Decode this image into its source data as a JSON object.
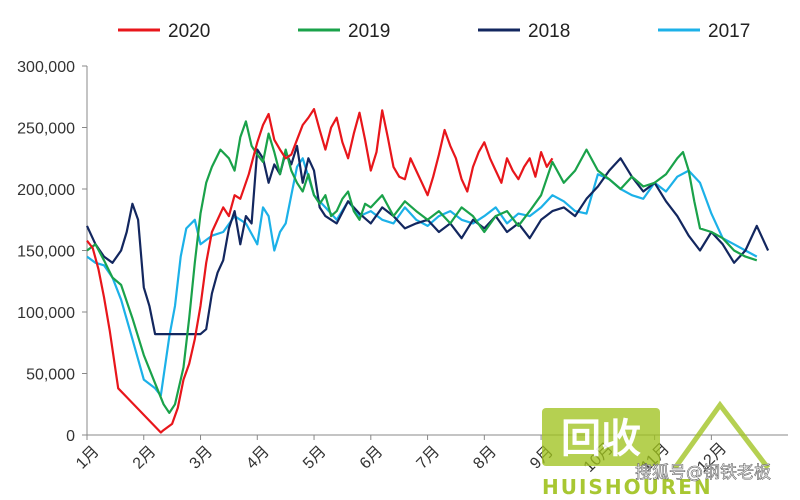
{
  "colors": {
    "2020": "#e8161b",
    "2019": "#1aa24a",
    "2018": "#13275f",
    "2017": "#1cb1e8",
    "axis": "#888888",
    "watermark_green": "#9fc21c"
  },
  "watermark": {
    "logo_text": "回收",
    "brand_text": "HUISHOUREN",
    "caption": "搜狐号@钢铁老板"
  },
  "chart_data": {
    "type": "line",
    "title": "",
    "xlabel": "",
    "ylabel": "",
    "ylim": [
      0,
      300000
    ],
    "xlim": [
      0,
      12
    ],
    "grid": false,
    "legend_position": "top",
    "y_ticks": [
      {
        "value": 0,
        "label": "0"
      },
      {
        "value": 50000,
        "label": "50,000"
      },
      {
        "value": 100000,
        "label": "100,000"
      },
      {
        "value": 150000,
        "label": "150,000"
      },
      {
        "value": 200000,
        "label": "200,000"
      },
      {
        "value": 250000,
        "label": "250,000"
      },
      {
        "value": 300000,
        "label": "300,000"
      }
    ],
    "x_ticks": [
      {
        "value": 0,
        "label": "1月"
      },
      {
        "value": 1,
        "label": "2月"
      },
      {
        "value": 2,
        "label": "3月"
      },
      {
        "value": 3,
        "label": "4月"
      },
      {
        "value": 4,
        "label": "5月"
      },
      {
        "value": 5,
        "label": "6月"
      },
      {
        "value": 6,
        "label": "7月"
      },
      {
        "value": 7,
        "label": "8月"
      },
      {
        "value": 8,
        "label": "9月"
      },
      {
        "value": 9,
        "label": "10月"
      },
      {
        "value": 10,
        "label": "11月"
      },
      {
        "value": 11,
        "label": "12月"
      }
    ],
    "series": [
      {
        "name": "2020",
        "x": [
          0,
          0.1,
          0.2,
          0.3,
          0.4,
          0.55,
          1.3,
          1.35,
          1.5,
          1.6,
          1.7,
          1.8,
          1.9,
          2.0,
          2.1,
          2.2,
          2.4,
          2.5,
          2.6,
          2.7,
          2.85,
          3.0,
          3.1,
          3.2,
          3.3,
          3.4,
          3.5,
          3.6,
          3.7,
          3.8,
          3.9,
          4.0,
          4.1,
          4.2,
          4.3,
          4.4,
          4.5,
          4.6,
          4.7,
          4.8,
          4.9,
          5.0,
          5.1,
          5.2,
          5.3,
          5.4,
          5.5,
          5.6,
          5.7,
          5.8,
          5.9,
          6.0,
          6.1,
          6.2,
          6.3,
          6.4,
          6.5,
          6.6,
          6.7,
          6.8,
          6.9,
          7.0,
          7.1,
          7.2,
          7.3,
          7.4,
          7.5,
          7.6,
          7.7,
          7.8,
          7.9,
          8.0,
          8.1,
          8.2
        ],
        "values": [
          158000,
          152000,
          135000,
          112000,
          85000,
          38000,
          2000,
          4000,
          9000,
          22000,
          45000,
          58000,
          78000,
          105000,
          140000,
          165000,
          185000,
          178000,
          195000,
          192000,
          212000,
          238000,
          252000,
          261000,
          240000,
          232000,
          225000,
          228000,
          240000,
          252000,
          258000,
          265000,
          248000,
          232000,
          250000,
          258000,
          238000,
          225000,
          245000,
          262000,
          240000,
          215000,
          230000,
          264000,
          242000,
          218000,
          210000,
          208000,
          225000,
          215000,
          205000,
          195000,
          210000,
          228000,
          248000,
          235000,
          225000,
          208000,
          198000,
          218000,
          230000,
          238000,
          225000,
          215000,
          205000,
          225000,
          215000,
          208000,
          218000,
          225000,
          210000,
          230000,
          218000,
          225000
        ]
      },
      {
        "name": "2019",
        "x": [
          0,
          0.15,
          0.3,
          0.45,
          0.6,
          0.8,
          1.0,
          1.2,
          1.35,
          1.45,
          1.55,
          1.7,
          1.8,
          1.9,
          2.0,
          2.1,
          2.2,
          2.35,
          2.5,
          2.6,
          2.7,
          2.8,
          2.9,
          3.0,
          3.1,
          3.2,
          3.3,
          3.4,
          3.5,
          3.6,
          3.7,
          3.8,
          3.9,
          4.0,
          4.1,
          4.2,
          4.3,
          4.4,
          4.5,
          4.6,
          4.7,
          4.8,
          4.9,
          5.0,
          5.2,
          5.4,
          5.6,
          5.8,
          6.0,
          6.2,
          6.4,
          6.6,
          6.8,
          7.0,
          7.2,
          7.4,
          7.6,
          7.8,
          8.0,
          8.2,
          8.4,
          8.6,
          8.8,
          9.0,
          9.2,
          9.4,
          9.6,
          9.8,
          10.0,
          10.2,
          10.4,
          10.5,
          10.6,
          10.7,
          10.8,
          11.0,
          11.2,
          11.4,
          11.6,
          11.8
        ],
        "values": [
          150000,
          155000,
          142000,
          128000,
          122000,
          95000,
          65000,
          42000,
          25000,
          18000,
          25000,
          55000,
          95000,
          140000,
          180000,
          205000,
          218000,
          232000,
          225000,
          215000,
          242000,
          255000,
          235000,
          228000,
          222000,
          245000,
          230000,
          212000,
          232000,
          215000,
          205000,
          198000,
          212000,
          195000,
          188000,
          195000,
          178000,
          182000,
          192000,
          198000,
          182000,
          175000,
          188000,
          185000,
          195000,
          178000,
          190000,
          182000,
          175000,
          182000,
          172000,
          185000,
          178000,
          165000,
          178000,
          182000,
          170000,
          182000,
          195000,
          222000,
          205000,
          215000,
          232000,
          215000,
          208000,
          200000,
          210000,
          202000,
          205000,
          212000,
          225000,
          230000,
          215000,
          190000,
          168000,
          165000,
          160000,
          150000,
          145000,
          142000
        ]
      },
      {
        "name": "2018",
        "x": [
          0,
          0.15,
          0.3,
          0.45,
          0.6,
          0.7,
          0.8,
          0.9,
          1.0,
          1.1,
          1.2,
          1.4,
          1.6,
          1.8,
          2.0,
          2.1,
          2.2,
          2.3,
          2.4,
          2.5,
          2.6,
          2.7,
          2.8,
          2.9,
          3.0,
          3.1,
          3.2,
          3.3,
          3.4,
          3.5,
          3.6,
          3.7,
          3.8,
          3.9,
          4.0,
          4.1,
          4.2,
          4.4,
          4.6,
          4.8,
          5.0,
          5.2,
          5.4,
          5.6,
          5.8,
          6.0,
          6.2,
          6.4,
          6.6,
          6.8,
          7.0,
          7.2,
          7.4,
          7.6,
          7.8,
          8.0,
          8.2,
          8.4,
          8.6,
          8.8,
          9.0,
          9.2,
          9.4,
          9.6,
          9.8,
          10.0,
          10.2,
          10.4,
          10.6,
          10.8,
          11.0,
          11.2,
          11.4,
          11.6,
          11.8,
          12.0
        ],
        "values": [
          170000,
          155000,
          145000,
          140000,
          150000,
          165000,
          188000,
          175000,
          120000,
          105000,
          82000,
          82000,
          82000,
          82000,
          82000,
          86000,
          115000,
          132000,
          142000,
          168000,
          182000,
          155000,
          178000,
          172000,
          232000,
          225000,
          205000,
          220000,
          212000,
          230000,
          220000,
          235000,
          205000,
          225000,
          215000,
          185000,
          178000,
          172000,
          190000,
          180000,
          172000,
          185000,
          178000,
          168000,
          172000,
          175000,
          165000,
          172000,
          160000,
          175000,
          168000,
          178000,
          165000,
          172000,
          160000,
          175000,
          182000,
          185000,
          178000,
          192000,
          202000,
          215000,
          225000,
          210000,
          198000,
          205000,
          190000,
          178000,
          162000,
          150000,
          165000,
          155000,
          140000,
          150000,
          170000,
          150000
        ]
      },
      {
        "name": "2017",
        "x": [
          0,
          0.15,
          0.3,
          0.45,
          0.6,
          0.8,
          1.0,
          1.2,
          1.3,
          1.45,
          1.55,
          1.65,
          1.75,
          1.9,
          2.0,
          2.2,
          2.4,
          2.6,
          2.8,
          3.0,
          3.1,
          3.2,
          3.3,
          3.4,
          3.5,
          3.6,
          3.7,
          3.8,
          3.9,
          4.0,
          4.2,
          4.4,
          4.6,
          4.8,
          5.0,
          5.2,
          5.4,
          5.6,
          5.8,
          6.0,
          6.2,
          6.4,
          6.6,
          6.8,
          7.0,
          7.2,
          7.4,
          7.6,
          7.8,
          8.0,
          8.2,
          8.4,
          8.6,
          8.8,
          9.0,
          9.2,
          9.4,
          9.6,
          9.8,
          10.0,
          10.2,
          10.4,
          10.6,
          10.8,
          11.0,
          11.2,
          11.4,
          11.6,
          11.8
        ],
        "values": [
          145000,
          140000,
          138000,
          128000,
          110000,
          78000,
          45000,
          38000,
          32000,
          80000,
          105000,
          145000,
          168000,
          175000,
          155000,
          162000,
          165000,
          178000,
          172000,
          155000,
          185000,
          178000,
          150000,
          165000,
          172000,
          195000,
          218000,
          225000,
          210000,
          195000,
          185000,
          175000,
          190000,
          178000,
          182000,
          175000,
          172000,
          185000,
          175000,
          170000,
          178000,
          182000,
          175000,
          172000,
          178000,
          185000,
          172000,
          180000,
          178000,
          185000,
          195000,
          190000,
          182000,
          180000,
          212000,
          208000,
          200000,
          195000,
          192000,
          205000,
          198000,
          210000,
          215000,
          205000,
          180000,
          160000,
          155000,
          150000,
          145000
        ]
      }
    ]
  }
}
